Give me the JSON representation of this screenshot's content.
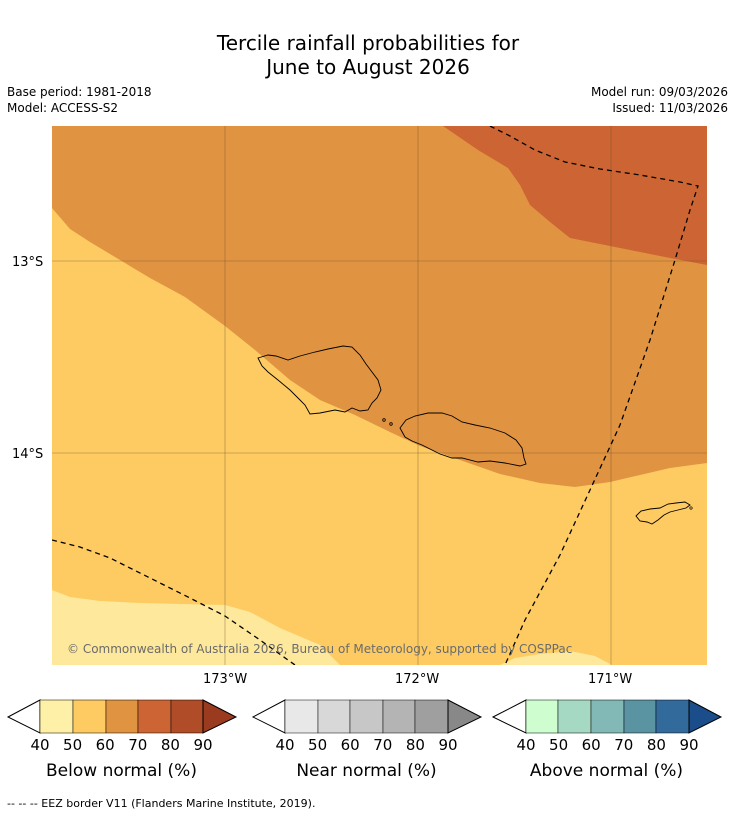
{
  "title_line1": "Tercile rainfall probabilities for",
  "title_line2": "June to August 2026",
  "base_period": "Base period: 1981-2018",
  "model": "Model: ACCESS-S2",
  "model_run": "Model run: 09/03/2026",
  "issued": "Issued: 11/03/2026",
  "map": {
    "lat_labels": [
      "13°S",
      "14°S"
    ],
    "lon_labels": [
      "173°W",
      "172°W",
      "171°W"
    ],
    "copyright": "© Commonwealth of Australia 2026, Bureau of Meteorology, supported by COSPPac",
    "colors": {
      "below_40_50": "#fee89b",
      "below_50_60": "#fdcb62",
      "below_60_70": "#e09441",
      "below_70_80": "#cc6533"
    }
  },
  "colorbars": [
    {
      "label": "Below normal (%)",
      "ticks": [
        "40",
        "50",
        "60",
        "70",
        "80",
        "90"
      ],
      "colors": [
        "#fff0a8",
        "#fdcb62",
        "#e09441",
        "#cc6533",
        "#b04c27"
      ],
      "arrow_color": "#9a3a1e"
    },
    {
      "label": "Near normal (%)",
      "ticks": [
        "40",
        "50",
        "60",
        "70",
        "80",
        "90"
      ],
      "colors": [
        "#e8e8e8",
        "#d8d8d8",
        "#c7c7c7",
        "#b4b4b4",
        "#9f9f9f"
      ],
      "arrow_color": "#888888"
    },
    {
      "label": "Above normal (%)",
      "ticks": [
        "40",
        "50",
        "60",
        "70",
        "80",
        "90"
      ],
      "colors": [
        "#cefdd0",
        "#a6d9c3",
        "#82b8b5",
        "#5a93a2",
        "#336a9c"
      ],
      "arrow_color": "#1a4d89"
    }
  ],
  "footer": "--  --  -- EEZ border V11 (Flanders Marine Institute, 2019)."
}
